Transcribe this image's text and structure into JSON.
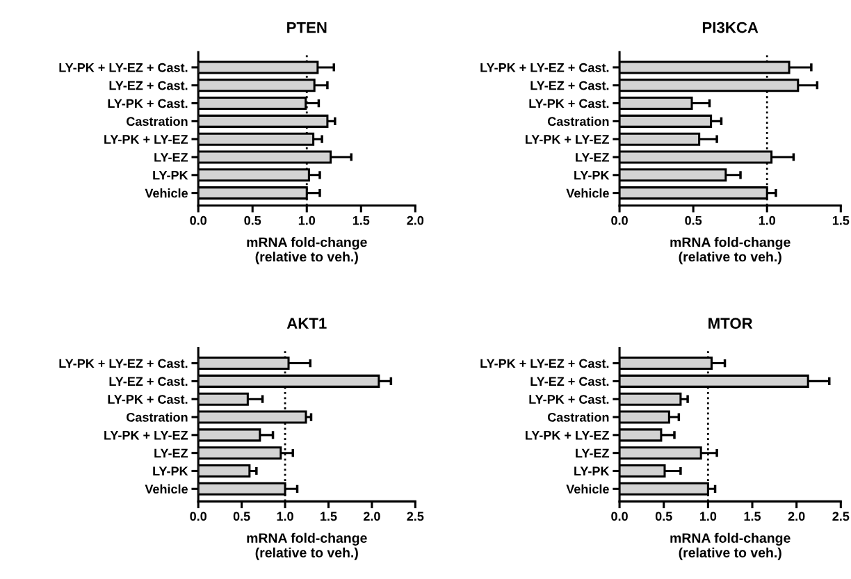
{
  "chart_data": [
    {
      "type": "bar",
      "orientation": "horizontal",
      "title": "PTEN",
      "xlabel": "mRNA fold-change\n(relative to veh.)",
      "categories": [
        "LY-PK + LY-EZ + Cast.",
        "LY-EZ + Cast.",
        "LY-PK + Cast.",
        "Castration",
        "LY-PK + LY-EZ",
        "LY-EZ",
        "LY-PK",
        "Vehicle"
      ],
      "color": "#d3d3d3",
      "values": [
        1.1,
        1.07,
        0.99,
        1.19,
        1.06,
        1.22,
        1.02,
        1.0
      ],
      "errors": [
        [
          1.1,
          1.25
        ],
        [
          1.07,
          1.19
        ],
        [
          0.99,
          1.11
        ],
        [
          1.19,
          1.26
        ],
        [
          1.06,
          1.14
        ],
        [
          1.22,
          1.41
        ],
        [
          1.02,
          1.12
        ],
        [
          1.0,
          1.12
        ]
      ],
      "xlim": [
        0,
        2
      ],
      "xticks": [
        {
          "value": 0,
          "label": "0.0"
        },
        0.5,
        {
          "value": 1,
          "label": "1.0"
        },
        1.5,
        {
          "value": 2,
          "label": "2.0"
        }
      ],
      "grid": false,
      "ref_lines": [
        {
          "axis": "x",
          "value": 1,
          "line_style": "dotted",
          "color": "#000000"
        }
      ]
    },
    {
      "type": "bar",
      "orientation": "horizontal",
      "title": "PI3KCA",
      "xlabel": "mRNA fold-change\n(relative to veh.)",
      "categories": [
        "LY-PK + LY-EZ + Cast.",
        "LY-EZ + Cast.",
        "LY-PK + Cast.",
        "Castration",
        "LY-PK + LY-EZ",
        "LY-EZ",
        "LY-PK",
        "Vehicle"
      ],
      "color": "#d3d3d3",
      "values": [
        1.15,
        1.21,
        0.49,
        0.62,
        0.54,
        1.03,
        0.72,
        1.0
      ],
      "errors": [
        [
          1.15,
          1.3
        ],
        [
          1.21,
          1.34
        ],
        [
          0.49,
          0.61
        ],
        [
          0.62,
          0.69
        ],
        [
          0.54,
          0.66
        ],
        [
          1.03,
          1.18
        ],
        [
          0.72,
          0.82
        ],
        [
          1.0,
          1.06
        ]
      ],
      "xlim": [
        0,
        1.5
      ],
      "xticks": [
        {
          "value": 0,
          "label": "0.0"
        },
        0.5,
        {
          "value": 1,
          "label": "1.0"
        },
        1.5
      ],
      "grid": false,
      "ref_lines": [
        {
          "axis": "x",
          "value": 1,
          "line_style": "dotted",
          "color": "#000000"
        }
      ]
    },
    {
      "type": "bar",
      "orientation": "horizontal",
      "title": "AKT1",
      "xlabel": "mRNA fold-change\n(relative to veh.)",
      "categories": [
        "LY-PK + LY-EZ + Cast.",
        "LY-EZ + Cast.",
        "LY-PK + Cast.",
        "Castration",
        "LY-PK + LY-EZ",
        "LY-EZ",
        "LY-PK",
        "Vehicle"
      ],
      "color": "#d3d3d3",
      "values": [
        1.04,
        2.08,
        0.57,
        1.24,
        0.71,
        0.95,
        0.59,
        1.0
      ],
      "errors": [
        [
          1.04,
          1.29
        ],
        [
          2.08,
          2.22
        ],
        [
          0.57,
          0.74
        ],
        [
          1.24,
          1.3
        ],
        [
          0.71,
          0.86
        ],
        [
          0.95,
          1.09
        ],
        [
          0.59,
          0.67
        ],
        [
          1.0,
          1.14
        ]
      ],
      "xlim": [
        0,
        2.5
      ],
      "xticks": [
        {
          "value": 0,
          "label": "0.0"
        },
        0.5,
        {
          "value": 1,
          "label": "1.0"
        },
        1.5,
        {
          "value": 2,
          "label": "2.0"
        },
        2.5
      ],
      "grid": false,
      "ref_lines": [
        {
          "axis": "x",
          "value": 1,
          "line_style": "dotted",
          "color": "#000000"
        }
      ]
    },
    {
      "type": "bar",
      "orientation": "horizontal",
      "title": "MTOR",
      "xlabel": "mRNA fold-change\n(relative to veh.)",
      "categories": [
        "LY-PK + LY-EZ + Cast.",
        "LY-EZ + Cast.",
        "LY-PK + Cast.",
        "Castration",
        "LY-PK + LY-EZ",
        "LY-EZ",
        "LY-PK",
        "Vehicle"
      ],
      "color": "#d3d3d3",
      "values": [
        1.04,
        2.13,
        0.69,
        0.56,
        0.47,
        0.92,
        0.51,
        1.0
      ],
      "errors": [
        [
          1.04,
          1.19
        ],
        [
          2.13,
          2.37
        ],
        [
          0.69,
          0.77
        ],
        [
          0.56,
          0.67
        ],
        [
          0.47,
          0.62
        ],
        [
          0.92,
          1.1
        ],
        [
          0.51,
          0.69
        ],
        [
          1.0,
          1.08
        ]
      ],
      "xlim": [
        0,
        2.5
      ],
      "xticks": [
        {
          "value": 0,
          "label": "0.0"
        },
        0.5,
        {
          "value": 1,
          "label": "1.0"
        },
        1.5,
        {
          "value": 2,
          "label": "2.0"
        },
        2.5
      ],
      "grid": false,
      "ref_lines": [
        {
          "axis": "x",
          "value": 1,
          "line_style": "dotted",
          "color": "#000000"
        }
      ]
    }
  ]
}
